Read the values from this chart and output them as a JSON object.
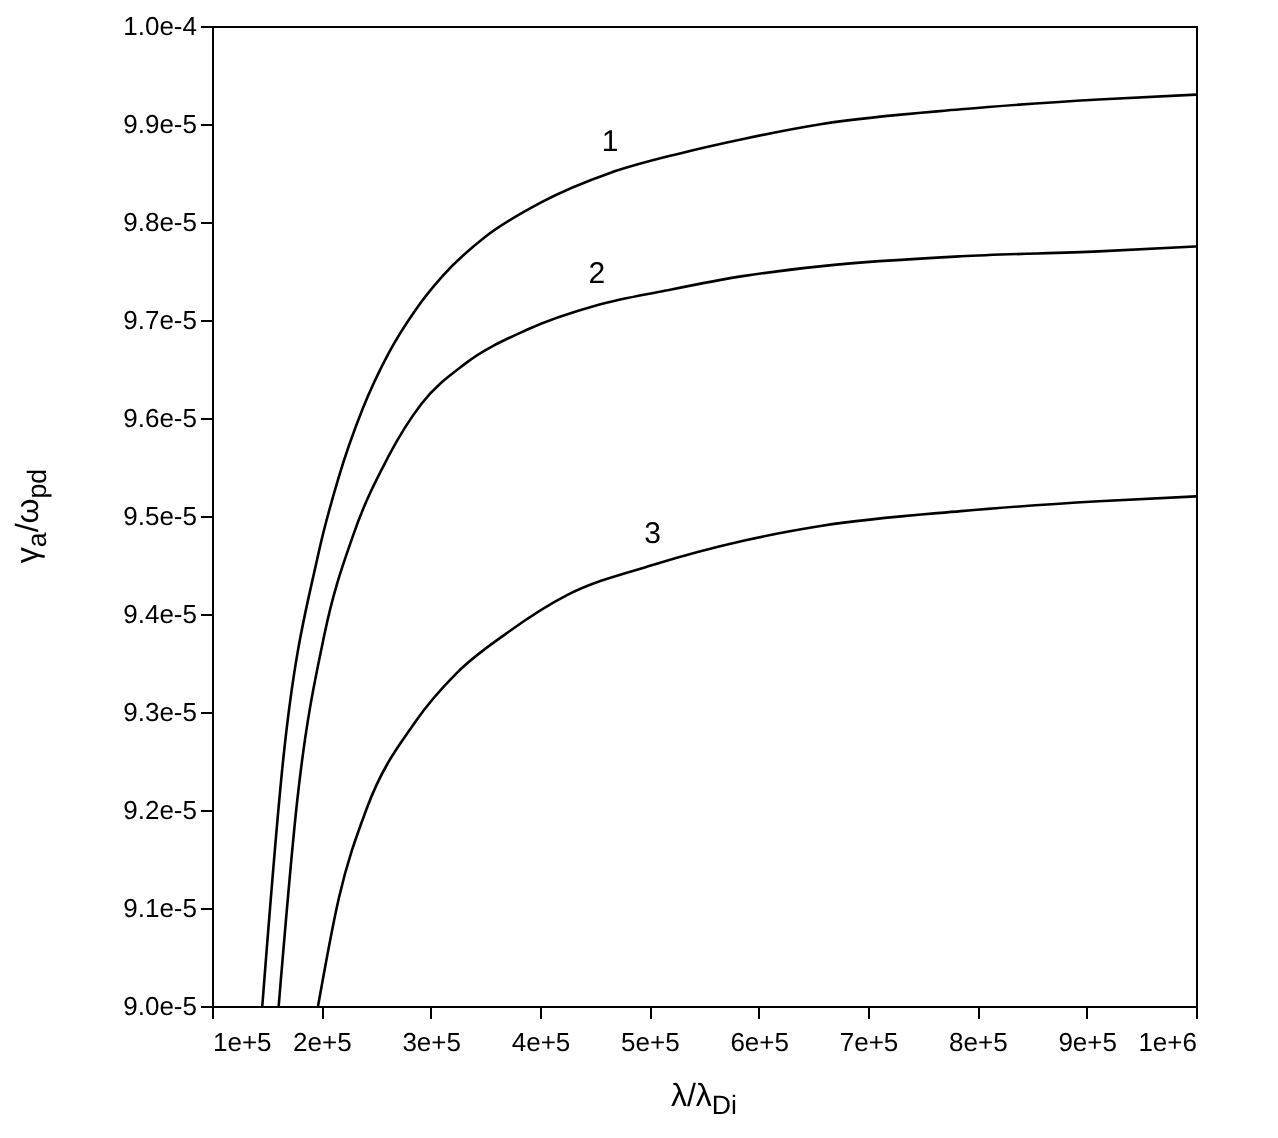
{
  "chart_data": {
    "type": "line",
    "xlabel": "λ/λ$_{Di}$",
    "ylabel": "γ$_{a}$/ω$_{pd}$",
    "xlim": [
      100000,
      1000000
    ],
    "xticks": [
      {
        "value": 100000,
        "label": "1e+5"
      },
      {
        "value": 200000,
        "label": "2e+5"
      },
      {
        "value": 300000,
        "label": "3e+5"
      },
      {
        "value": 400000,
        "label": "4e+5"
      },
      {
        "value": 500000,
        "label": "5e+5"
      },
      {
        "value": 600000,
        "label": "6e+5"
      },
      {
        "value": 700000,
        "label": "7e+5"
      },
      {
        "value": 800000,
        "label": "8e+5"
      },
      {
        "value": 900000,
        "label": "9e+5"
      },
      {
        "value": 1000000,
        "label": "1e+6"
      }
    ],
    "ylim": [
      9e-05,
      0.0001
    ],
    "yticks": [
      {
        "value": 9e-05,
        "label": "9.0e-5"
      },
      {
        "value": 9.1e-05,
        "label": "9.1e-5"
      },
      {
        "value": 9.2e-05,
        "label": "9.2e-5"
      },
      {
        "value": 9.3e-05,
        "label": "9.3e-5"
      },
      {
        "value": 9.4e-05,
        "label": "9.4e-5"
      },
      {
        "value": 9.5e-05,
        "label": "9.5e-5"
      },
      {
        "value": 9.6e-05,
        "label": "9.6e-5"
      },
      {
        "value": 9.7e-05,
        "label": "9.7e-5"
      },
      {
        "value": 9.8e-05,
        "label": "9.8e-5"
      },
      {
        "value": 9.9e-05,
        "label": "9.9e-5"
      },
      {
        "value": 0.0001,
        "label": "1.0e-4"
      }
    ],
    "grid": false,
    "marker": "none",
    "line_style": "solid",
    "series": [
      {
        "name": "1",
        "color": "#000000",
        "x": [
          146000,
          165000,
          197000,
          216000,
          238000,
          261000,
          286000,
          311000,
          350000,
          401000,
          464000,
          528000,
          587000,
          658000,
          785000,
          911000,
          1000000
        ],
        "values": [
          9e-05,
          9.25e-05,
          9.46e-05,
          9.54e-05,
          9.61e-05,
          9.665e-05,
          9.71e-05,
          9.745e-05,
          9.785e-05,
          9.82e-05,
          9.85e-05,
          9.87e-05,
          9.885e-05,
          9.9e-05,
          9.915e-05,
          9.925e-05,
          9.93e-05
        ]
      },
      {
        "name": "2",
        "color": "#000000",
        "x": [
          161000,
          178000,
          203000,
          229000,
          261000,
          292000,
          331000,
          388000,
          452000,
          515000,
          587000,
          658000,
          785000,
          911000,
          1000000
        ],
        "values": [
          9e-05,
          9.21e-05,
          9.38e-05,
          9.48e-05,
          9.56e-05,
          9.615e-05,
          9.655e-05,
          9.69e-05,
          9.715e-05,
          9.73e-05,
          9.745e-05,
          9.755e-05,
          9.765e-05,
          9.77e-05,
          9.775e-05
        ]
      },
      {
        "name": "3",
        "color": "#000000",
        "x": [
          197000,
          216000,
          241000,
          286000,
          324000,
          369000,
          426000,
          503000,
          587000,
          658000,
          785000,
          911000,
          1000000
        ],
        "values": [
          9e-05,
          9.11e-05,
          9.2e-05,
          9.29e-05,
          9.34e-05,
          9.38e-05,
          9.42e-05,
          9.45e-05,
          9.475e-05,
          9.49e-05,
          9.505e-05,
          9.515e-05,
          9.52e-05
        ]
      }
    ]
  }
}
